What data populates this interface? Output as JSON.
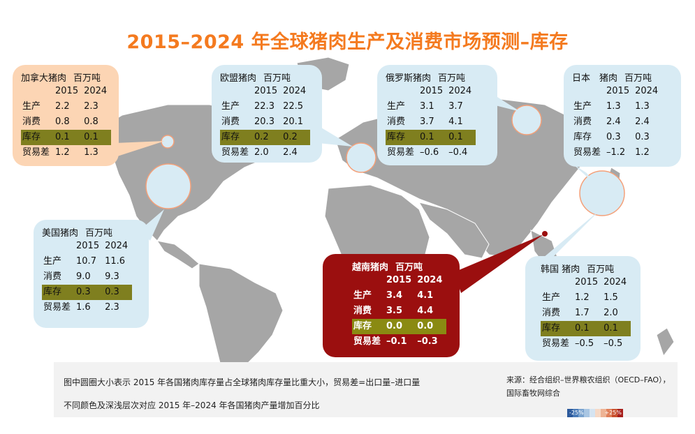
{
  "title": "2015–2024 年全球猪肉生产及消费市场预测–库存",
  "colors": {
    "title": "#f47a1f",
    "land": "#a6a6a6",
    "bubble": "#d8ebf4",
    "highlight_row": "#7f7f1f",
    "vietnam": "#9b0f0f"
  },
  "chart_data": {
    "type": "table",
    "unit": "百万吨",
    "years": [
      "2015",
      "2024"
    ],
    "row_labels": [
      "生产",
      "消费",
      "库存",
      "贸易差"
    ],
    "countries": [
      {
        "id": "canada",
        "name": "加拿大猪肉",
        "rows": [
          [
            "2.2",
            "2.3"
          ],
          [
            "0.8",
            "0.8"
          ],
          [
            "0.1",
            "0.1"
          ],
          [
            "1.2",
            "1.3"
          ]
        ]
      },
      {
        "id": "eu",
        "name": "欧盟猪肉",
        "rows": [
          [
            "22.3",
            "22.5"
          ],
          [
            "20.3",
            "20.1"
          ],
          [
            "0.2",
            "0.2"
          ],
          [
            "2.0",
            "2.4"
          ]
        ]
      },
      {
        "id": "russia",
        "name": "俄罗斯猪肉",
        "rows": [
          [
            "3.1",
            "3.7"
          ],
          [
            "3.7",
            "4.1"
          ],
          [
            "0.1",
            "0.1"
          ],
          [
            "–0.6",
            "–0.4"
          ]
        ]
      },
      {
        "id": "japan",
        "name": "日本　猪肉",
        "rows": [
          [
            "1.3",
            "1.3"
          ],
          [
            "2.4",
            "2.4"
          ],
          [
            "0.3",
            "0.3"
          ],
          [
            "–1.2",
            "1.2"
          ]
        ]
      },
      {
        "id": "usa",
        "name": "美国猪肉",
        "rows": [
          [
            "10.7",
            "11.6"
          ],
          [
            "9.0",
            "9.3"
          ],
          [
            "0.3",
            "0.3"
          ],
          [
            "1.6",
            "2.3"
          ]
        ]
      },
      {
        "id": "vietnam",
        "name": "越南猪肉",
        "rows": [
          [
            "3.4",
            "4.1"
          ],
          [
            "3.5",
            "4.4"
          ],
          [
            "0.0",
            "0.0"
          ],
          [
            "–0.1",
            "–0.3"
          ]
        ]
      },
      {
        "id": "korea",
        "name": "韩国 猪肉",
        "rows": [
          [
            "1.2",
            "1.5"
          ],
          [
            "1.7",
            "2.0"
          ],
          [
            "0.1",
            "0.1"
          ],
          [
            "–0.5",
            "–0.5"
          ]
        ]
      }
    ],
    "highlight_row": "库存",
    "color_scale": {
      "min_label": "-25%",
      "max_label": "+25%",
      "colors": [
        "#2c5a9c",
        "#4a7bb8",
        "#7aa3cf",
        "#a9c6e3",
        "#d5e4f1",
        "#f6d9c6",
        "#eeb394",
        "#e0805a",
        "#c9512f",
        "#a8201c"
      ]
    }
  },
  "note": {
    "line1": "图中圆圈大小表示 2015 年各国猪肉库存量占全球猪肉库存量比重大小，贸易差=出口量–进口量",
    "line2": "不同颜色及深浅层次对应 2015 年–2024 年各国猪肉产量增加百分比",
    "source_line1": "来源：经合组织–世界粮农组织（OECD–FAO），",
    "source_line2": "国际畜牧网综合"
  }
}
